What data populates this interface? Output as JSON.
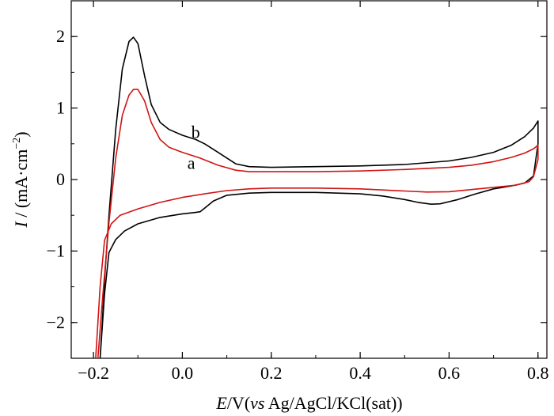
{
  "chart_data": {
    "type": "line",
    "title": "",
    "xlabel": {
      "var": "E",
      "unit": "/V(",
      "vs": "vs",
      "ref": " Ag/AgCl/KCl(sat))"
    },
    "ylabel": {
      "var": "I",
      "unit": " / (mA·cm",
      "exp": "−2",
      "close": ")"
    },
    "xlim": [
      -0.25,
      0.82
    ],
    "ylim": [
      -2.5,
      2.5
    ],
    "xticks": [
      {
        "v": -0.2,
        "label": "−0.2"
      },
      {
        "v": 0.0,
        "label": "0.0"
      },
      {
        "v": 0.2,
        "label": "0.2"
      },
      {
        "v": 0.4,
        "label": "0.4"
      },
      {
        "v": 0.6,
        "label": "0.6"
      },
      {
        "v": 0.8,
        "label": "0.8"
      }
    ],
    "yticks": [
      {
        "v": -2,
        "label": "−2"
      },
      {
        "v": -1,
        "label": "−1"
      },
      {
        "v": 0,
        "label": "0"
      },
      {
        "v": 1,
        "label": "1"
      },
      {
        "v": 2,
        "label": "2"
      }
    ],
    "grid": false,
    "series": [
      {
        "name": "b",
        "color": "#000000",
        "label_at": [
          0.03,
          0.58
        ],
        "points": [
          [
            -0.185,
            -2.5
          ],
          [
            -0.175,
            -1.6
          ],
          [
            -0.165,
            -1.02
          ],
          [
            -0.15,
            -0.84
          ],
          [
            -0.13,
            -0.72
          ],
          [
            -0.1,
            -0.62
          ],
          [
            -0.05,
            -0.53
          ],
          [
            0.0,
            -0.48
          ],
          [
            0.03,
            -0.46
          ],
          [
            0.04,
            -0.45
          ],
          [
            0.05,
            -0.4
          ],
          [
            0.07,
            -0.3
          ],
          [
            0.1,
            -0.22
          ],
          [
            0.15,
            -0.19
          ],
          [
            0.2,
            -0.18
          ],
          [
            0.3,
            -0.18
          ],
          [
            0.4,
            -0.2
          ],
          [
            0.45,
            -0.23
          ],
          [
            0.5,
            -0.28
          ],
          [
            0.53,
            -0.32
          ],
          [
            0.56,
            -0.345
          ],
          [
            0.58,
            -0.34
          ],
          [
            0.62,
            -0.28
          ],
          [
            0.66,
            -0.2
          ],
          [
            0.7,
            -0.13
          ],
          [
            0.74,
            -0.09
          ],
          [
            0.77,
            -0.05
          ],
          [
            0.79,
            0.05
          ],
          [
            0.8,
            0.5
          ],
          [
            0.8,
            0.82
          ],
          [
            0.79,
            0.72
          ],
          [
            0.77,
            0.6
          ],
          [
            0.74,
            0.48
          ],
          [
            0.7,
            0.38
          ],
          [
            0.65,
            0.31
          ],
          [
            0.6,
            0.26
          ],
          [
            0.5,
            0.21
          ],
          [
            0.4,
            0.19
          ],
          [
            0.3,
            0.18
          ],
          [
            0.2,
            0.17
          ],
          [
            0.15,
            0.18
          ],
          [
            0.12,
            0.22
          ],
          [
            0.08,
            0.38
          ],
          [
            0.05,
            0.5
          ],
          [
            0.03,
            0.56
          ],
          [
            0.0,
            0.62
          ],
          [
            -0.03,
            0.7
          ],
          [
            -0.05,
            0.8
          ],
          [
            -0.07,
            1.05
          ],
          [
            -0.085,
            1.45
          ],
          [
            -0.1,
            1.9
          ],
          [
            -0.11,
            1.99
          ],
          [
            -0.12,
            1.93
          ],
          [
            -0.135,
            1.55
          ],
          [
            -0.15,
            0.7
          ],
          [
            -0.165,
            -0.5
          ],
          [
            -0.175,
            -1.4
          ],
          [
            -0.18,
            -2.0
          ],
          [
            -0.185,
            -2.5
          ]
        ]
      },
      {
        "name": "a",
        "color": "#d11414",
        "label_at": [
          0.02,
          0.15
        ],
        "points": [
          [
            -0.195,
            -2.5
          ],
          [
            -0.185,
            -1.5
          ],
          [
            -0.175,
            -0.85
          ],
          [
            -0.16,
            -0.62
          ],
          [
            -0.14,
            -0.5
          ],
          [
            -0.1,
            -0.41
          ],
          [
            -0.05,
            -0.32
          ],
          [
            0.0,
            -0.25
          ],
          [
            0.05,
            -0.2
          ],
          [
            0.1,
            -0.155
          ],
          [
            0.15,
            -0.13
          ],
          [
            0.2,
            -0.12
          ],
          [
            0.3,
            -0.12
          ],
          [
            0.4,
            -0.13
          ],
          [
            0.5,
            -0.16
          ],
          [
            0.55,
            -0.175
          ],
          [
            0.6,
            -0.17
          ],
          [
            0.65,
            -0.14
          ],
          [
            0.7,
            -0.11
          ],
          [
            0.75,
            -0.08
          ],
          [
            0.78,
            -0.03
          ],
          [
            0.79,
            0.04
          ],
          [
            0.8,
            0.28
          ],
          [
            0.8,
            0.48
          ],
          [
            0.79,
            0.43
          ],
          [
            0.77,
            0.37
          ],
          [
            0.74,
            0.31
          ],
          [
            0.7,
            0.25
          ],
          [
            0.65,
            0.2
          ],
          [
            0.6,
            0.17
          ],
          [
            0.5,
            0.14
          ],
          [
            0.4,
            0.12
          ],
          [
            0.3,
            0.11
          ],
          [
            0.2,
            0.11
          ],
          [
            0.15,
            0.11
          ],
          [
            0.12,
            0.13
          ],
          [
            0.08,
            0.2
          ],
          [
            0.04,
            0.3
          ],
          [
            0.0,
            0.38
          ],
          [
            -0.03,
            0.45
          ],
          [
            -0.05,
            0.56
          ],
          [
            -0.07,
            0.8
          ],
          [
            -0.085,
            1.1
          ],
          [
            -0.1,
            1.26
          ],
          [
            -0.11,
            1.26
          ],
          [
            -0.12,
            1.18
          ],
          [
            -0.135,
            0.9
          ],
          [
            -0.15,
            0.3
          ],
          [
            -0.165,
            -0.6
          ],
          [
            -0.18,
            -1.7
          ],
          [
            -0.19,
            -2.5
          ]
        ]
      }
    ]
  }
}
